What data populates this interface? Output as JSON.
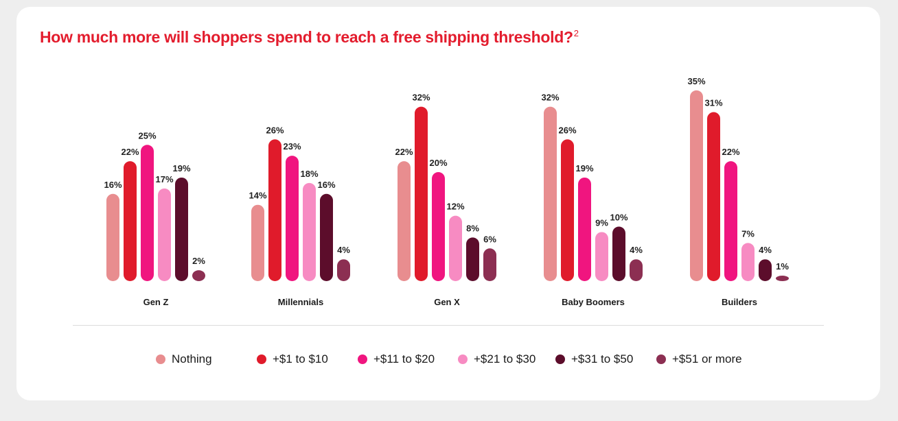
{
  "title": "How much more will shoppers spend to reach a free shipping threshold?",
  "title_footnote": "2",
  "chart_data": {
    "type": "bar",
    "categories": [
      "Gen Z",
      "Millennials",
      "Gen X",
      "Baby Boomers",
      "Builders"
    ],
    "series": [
      {
        "name": "Nothing",
        "color": "#e88d8f",
        "values": [
          16,
          14,
          22,
          32,
          35
        ]
      },
      {
        "name": "+$1 to $10",
        "color": "#e01b2b",
        "values": [
          22,
          26,
          32,
          26,
          31
        ]
      },
      {
        "name": "+$11 to $20",
        "color": "#f0157f",
        "values": [
          25,
          23,
          20,
          19,
          22
        ]
      },
      {
        "name": "+$21 to $30",
        "color": "#f78bc2",
        "values": [
          17,
          18,
          12,
          9,
          7
        ]
      },
      {
        "name": "+$31 to $50",
        "color": "#5c0d2b",
        "values": [
          19,
          16,
          8,
          10,
          4
        ]
      },
      {
        "name": "+$51 or more",
        "color": "#8c2f52",
        "values": [
          2,
          4,
          6,
          4,
          1
        ]
      }
    ],
    "value_suffix": "%",
    "ylim": [
      0,
      35
    ],
    "grid": false,
    "legend_position": "bottom"
  }
}
